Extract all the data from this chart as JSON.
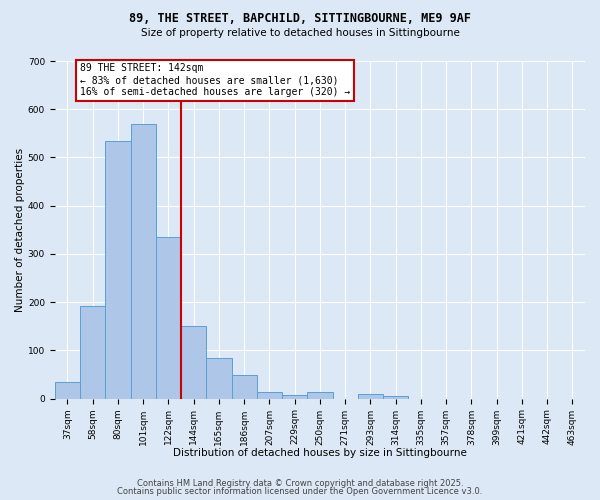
{
  "title_line1": "89, THE STREET, BAPCHILD, SITTINGBOURNE, ME9 9AF",
  "title_line2": "Size of property relative to detached houses in Sittingbourne",
  "xlabel": "Distribution of detached houses by size in Sittingbourne",
  "ylabel": "Number of detached properties",
  "bar_labels": [
    "37sqm",
    "58sqm",
    "80sqm",
    "101sqm",
    "122sqm",
    "144sqm",
    "165sqm",
    "186sqm",
    "207sqm",
    "229sqm",
    "250sqm",
    "271sqm",
    "293sqm",
    "314sqm",
    "335sqm",
    "357sqm",
    "378sqm",
    "399sqm",
    "421sqm",
    "442sqm",
    "463sqm"
  ],
  "bar_values": [
    35,
    192,
    535,
    570,
    335,
    150,
    85,
    48,
    13,
    8,
    13,
    0,
    10,
    5,
    0,
    0,
    0,
    0,
    0,
    0,
    0
  ],
  "bar_color": "#aec6e8",
  "bar_edge_color": "#5a9fd4",
  "annotation_text": "89 THE STREET: 142sqm\n← 83% of detached houses are smaller (1,630)\n16% of semi-detached houses are larger (320) →",
  "annotation_box_color": "#ffffff",
  "annotation_box_edge_color": "#cc0000",
  "vline_color": "#cc0000",
  "ylim": [
    0,
    700
  ],
  "yticks": [
    0,
    100,
    200,
    300,
    400,
    500,
    600,
    700
  ],
  "footer_line1": "Contains HM Land Registry data © Crown copyright and database right 2025.",
  "footer_line2": "Contains public sector information licensed under the Open Government Licence v3.0.",
  "bg_color": "#dce8f5",
  "plot_bg_color": "#dce8f5",
  "grid_color": "#ffffff",
  "title_fontsize": 8.5,
  "subtitle_fontsize": 7.5,
  "tick_fontsize": 6.5,
  "label_fontsize": 7.5,
  "annotation_fontsize": 7.0,
  "footer_fontsize": 6.0
}
